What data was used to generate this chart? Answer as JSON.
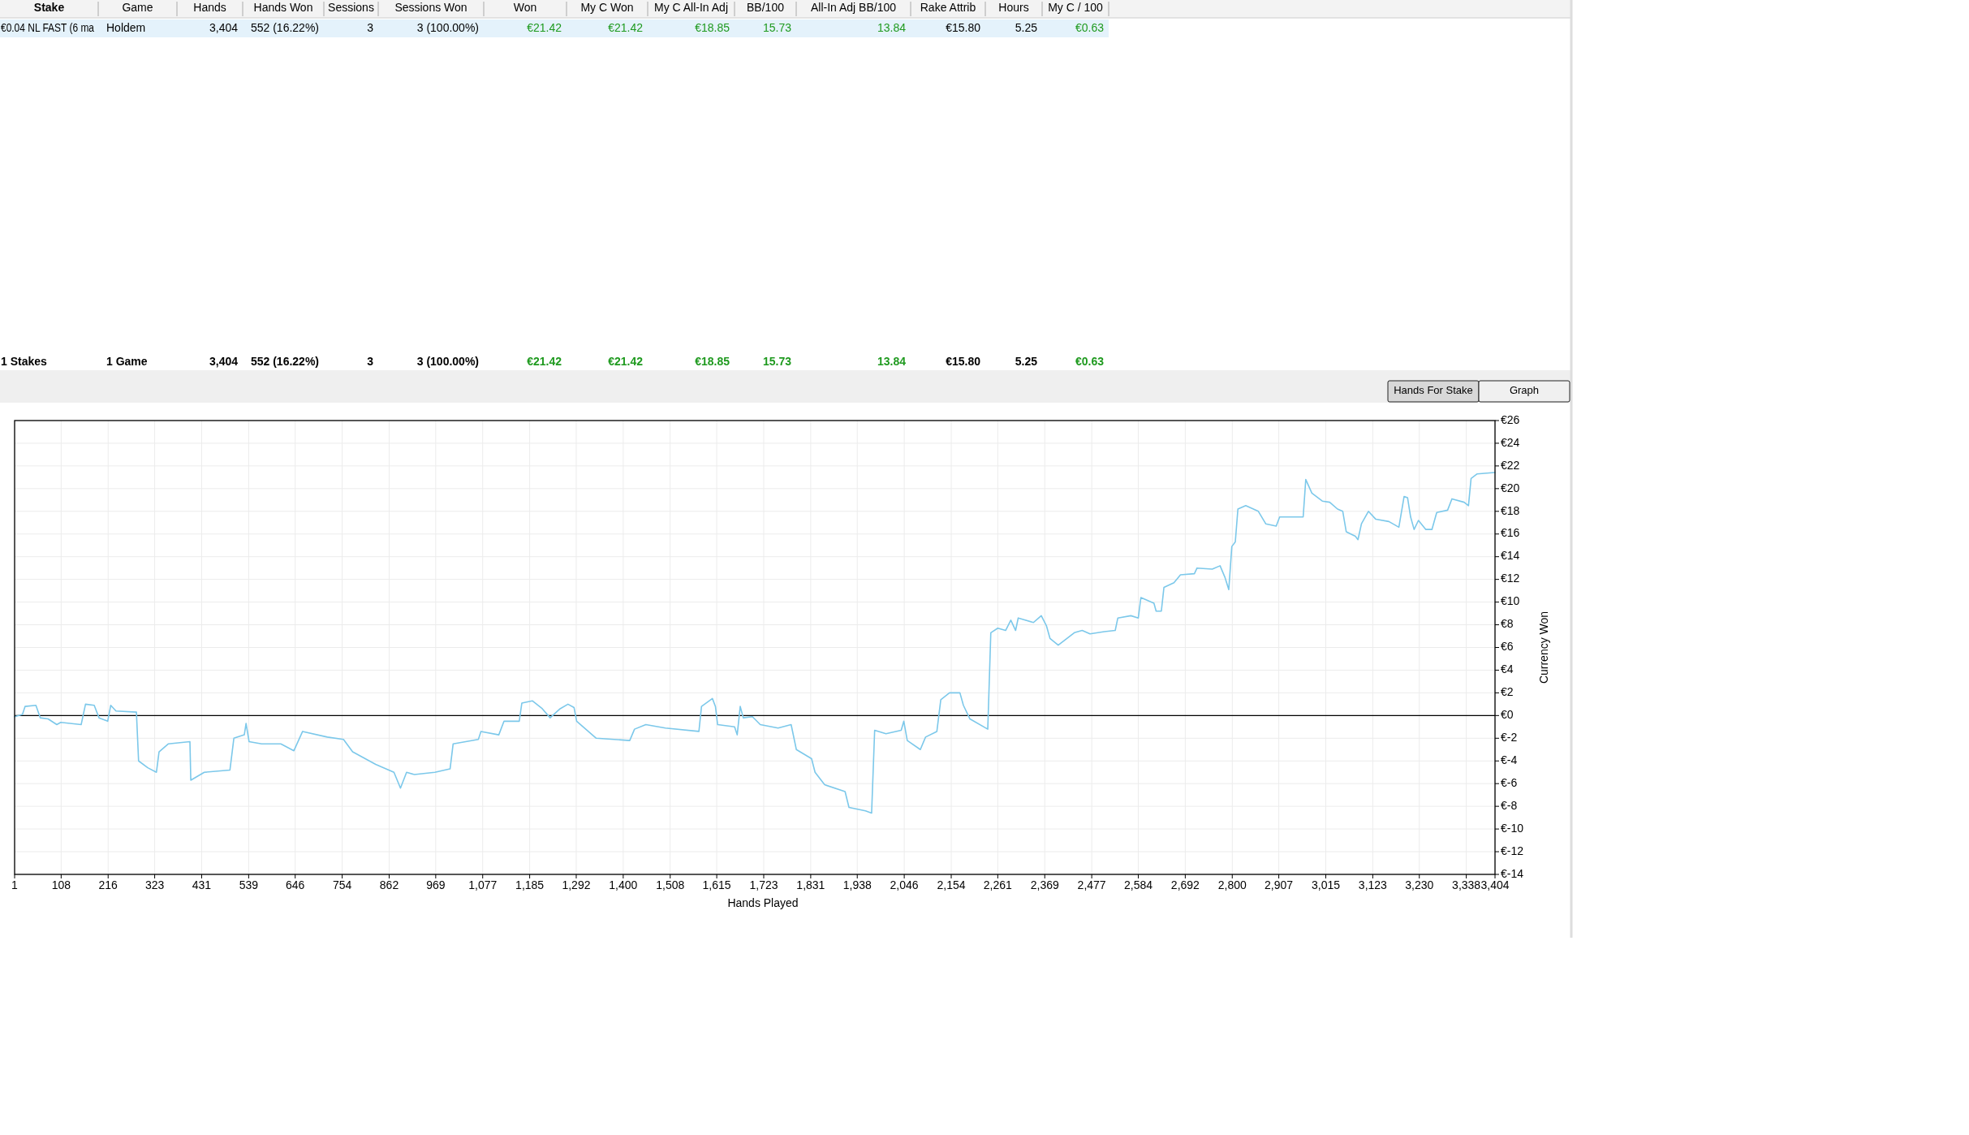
{
  "chart_data": [
    {
      "type": "other",
      "annotations": [
        "Stake",
        "Game",
        "Hands",
        "Hands Won",
        "Sessions",
        "Sessions Won",
        "Won",
        "My C Won",
        "My C All-In Adj",
        "BB/100",
        "All-In Adj BB/100",
        "Rake Attrib",
        "Hours",
        "My C / 100",
        "€0.04 NL FAST (6 ma",
        "Holdem",
        "3,404",
        "552 (16.22%)",
        "3",
        "3 (100.00%)",
        "€21.42",
        "€21.42",
        "€18.85",
        "15.73",
        "13.84",
        "€15.80",
        "5.25",
        "€0.63",
        "1 Stakes",
        "1 Game",
        "3,404",
        "552 (16.22%)",
        "3",
        "3 (100.00%)",
        "€21.42",
        "€21.42",
        "€18.85",
        "15.73",
        "13.84",
        "€15.80",
        "5.25",
        "€0.63",
        "Hands For Stake",
        "Graph"
      ]
    },
    {
      "type": "line",
      "xlabel": "Hands Played",
      "ylabel": "Currency Won",
      "grid": true,
      "xlim": [
        1,
        3404
      ],
      "ylim": [
        -14,
        26
      ],
      "xticks": [
        1,
        {
          "value": 108,
          "label": "108"
        },
        {
          "value": 216,
          "label": "216"
        },
        {
          "value": 323,
          "label": "323"
        },
        {
          "value": 431,
          "label": "431"
        },
        {
          "value": 539,
          "label": "539"
        },
        {
          "value": 646,
          "label": "646"
        },
        {
          "value": 754,
          "label": "754"
        },
        {
          "value": 862,
          "label": "862"
        },
        {
          "value": 969,
          "label": "969"
        },
        {
          "value": 1077,
          "label": "1,077"
        },
        {
          "value": 1185,
          "label": "1,185"
        },
        {
          "value": 1292,
          "label": "1,292"
        },
        {
          "value": 1400,
          "label": "1,400"
        },
        {
          "value": 1508,
          "label": "1,508"
        },
        {
          "value": 1615,
          "label": "1,615"
        },
        {
          "value": 1723,
          "label": "1,723"
        },
        {
          "value": 1831,
          "label": "1,831"
        },
        {
          "value": 1938,
          "label": "1,938"
        },
        {
          "value": 2046,
          "label": "2,046"
        },
        {
          "value": 2154,
          "label": "2,154"
        },
        {
          "value": 2261,
          "label": "2,261"
        },
        {
          "value": 2369,
          "label": "2,369"
        },
        {
          "value": 2477,
          "label": "2,477"
        },
        {
          "value": 2584,
          "label": "2,584"
        },
        {
          "value": 2692,
          "label": "2,692"
        },
        {
          "value": 2800,
          "label": "2,800"
        },
        {
          "value": 2907,
          "label": "2,907"
        },
        {
          "value": 3015,
          "label": "3,015"
        },
        {
          "value": 3123,
          "label": "3,123"
        },
        {
          "value": 3230,
          "label": "3,230"
        },
        {
          "value": 3338,
          "label": "3,338"
        },
        {
          "value": 3404,
          "label": "3,404"
        }
      ],
      "yticks": [
        {
          "value": -14,
          "label": "€-14"
        },
        {
          "value": -12,
          "label": "€-12"
        },
        {
          "value": -10,
          "label": "€-10"
        },
        {
          "value": -8,
          "label": "€-8"
        },
        {
          "value": -6,
          "label": "€-6"
        },
        {
          "value": -4,
          "label": "€-4"
        },
        {
          "value": -2,
          "label": "€-2"
        },
        {
          "value": 0,
          "label": "€0"
        },
        {
          "value": 2,
          "label": "€2"
        },
        {
          "value": 4,
          "label": "€4"
        },
        {
          "value": 6,
          "label": "€6"
        },
        {
          "value": 8,
          "label": "€8"
        },
        {
          "value": 10,
          "label": "€10"
        },
        {
          "value": 12,
          "label": "€12"
        },
        {
          "value": 14,
          "label": "€14"
        },
        {
          "value": 16,
          "label": "€16"
        },
        {
          "value": 18,
          "label": "€18"
        },
        {
          "value": 20,
          "label": "€20"
        },
        {
          "value": 22,
          "label": "€22"
        },
        {
          "value": 24,
          "label": "€24"
        },
        {
          "value": 26,
          "label": "€26"
        }
      ],
      "ref_lines": [
        {
          "axis": "y",
          "value": 0,
          "color": "#000000"
        }
      ],
      "series": [
        {
          "color": "#7cc8ea",
          "line_style": "solid",
          "x": [
            1,
            19,
            25,
            50,
            60,
            78,
            98,
            107,
            154,
            164,
            184,
            195,
            215,
            222,
            234,
            281,
            286,
            307,
            327,
            333,
            354,
            404,
            406,
            437,
            496,
            505,
            529,
            533,
            540,
            569,
            613,
            643,
            663,
            720,
            757,
            778,
            831,
            873,
            888,
            902,
            920,
            967,
            1002,
            1009,
            1067,
            1073,
            1114,
            1126,
            1161,
            1167,
            1191,
            1214,
            1232,
            1255,
            1273,
            1287,
            1293,
            1338,
            1379,
            1415,
            1426,
            1452,
            1497,
            1574,
            1580,
            1605,
            1612,
            1617,
            1656,
            1662,
            1669,
            1676,
            1697,
            1715,
            1756,
            1786,
            1798,
            1833,
            1841,
            1863,
            1910,
            1919,
            1957,
            1971,
            1978,
            2004,
            2039,
            2045,
            2053,
            2083,
            2095,
            2121,
            2130,
            2150,
            2174,
            2182,
            2197,
            2238,
            2245,
            2261,
            2279,
            2291,
            2302,
            2308,
            2343,
            2361,
            2373,
            2381,
            2400,
            2420,
            2437,
            2455,
            2473,
            2506,
            2531,
            2537,
            2567,
            2584,
            2590,
            2620,
            2625,
            2637,
            2643,
            2666,
            2681,
            2713,
            2719,
            2754,
            2772,
            2783,
            2792,
            2799,
            2807,
            2813,
            2831,
            2860,
            2877,
            2901,
            2909,
            2954,
            2963,
            2969,
            2983,
            3007,
            3024,
            3042,
            3054,
            3062,
            3083,
            3089,
            3097,
            3113,
            3130,
            3160,
            3183,
            3195,
            3203,
            3210,
            3218,
            3228,
            3245,
            3259,
            3270,
            3295,
            3305,
            3333,
            3343,
            3349,
            3363,
            3397,
            3404
          ],
          "values": [
            -0.1,
            0.1,
            0.8,
            0.9,
            -0.2,
            -0.3,
            -0.8,
            -0.6,
            -0.8,
            1.0,
            0.9,
            -0.2,
            -0.5,
            0.9,
            0.4,
            0.3,
            -4.0,
            -4.6,
            -5.0,
            -3.2,
            -2.5,
            -2.3,
            -5.7,
            -5.0,
            -4.8,
            -2.0,
            -1.7,
            -0.7,
            -2.3,
            -2.5,
            -2.5,
            -3.1,
            -1.4,
            -1.9,
            -2.1,
            -3.2,
            -4.3,
            -5.0,
            -6.4,
            -5.0,
            -5.2,
            -5.0,
            -4.7,
            -2.5,
            -2.1,
            -1.4,
            -1.7,
            -0.5,
            -0.5,
            1.1,
            1.3,
            0.6,
            -0.2,
            0.6,
            1.0,
            0.7,
            -0.5,
            -2.0,
            -2.1,
            -2.2,
            -1.2,
            -0.8,
            -1.1,
            -1.4,
            0.8,
            1.5,
            0.8,
            -0.8,
            -1.0,
            -1.7,
            0.8,
            -0.2,
            -0.1,
            -0.8,
            -1.1,
            -0.8,
            -3.0,
            -3.8,
            -5.0,
            -6.1,
            -6.7,
            -8.1,
            -8.4,
            -8.6,
            -1.3,
            -1.6,
            -1.3,
            -0.5,
            -2.2,
            -3.0,
            -1.9,
            -1.4,
            1.4,
            2.0,
            2.0,
            0.9,
            -0.3,
            -1.2,
            7.3,
            7.7,
            7.5,
            8.4,
            7.5,
            8.6,
            8.2,
            8.8,
            7.9,
            6.8,
            6.2,
            6.8,
            7.3,
            7.5,
            7.2,
            7.4,
            7.5,
            8.6,
            8.8,
            8.6,
            10.4,
            9.9,
            9.2,
            9.2,
            11.3,
            11.7,
            12.4,
            12.5,
            13.0,
            12.9,
            13.2,
            12.2,
            11.1,
            14.9,
            15.3,
            18.2,
            18.5,
            18.0,
            16.9,
            16.7,
            17.5,
            17.5,
            17.5,
            20.8,
            19.6,
            18.9,
            18.8,
            18.2,
            18.0,
            16.2,
            15.8,
            15.5,
            16.9,
            18.0,
            17.3,
            17.1,
            16.6,
            19.3,
            19.2,
            17.5,
            16.4,
            17.2,
            16.4,
            16.4,
            17.9,
            18.1,
            19.1,
            18.8,
            18.5,
            20.9,
            21.3,
            21.4,
            21.42
          ]
        }
      ]
    }
  ]
}
